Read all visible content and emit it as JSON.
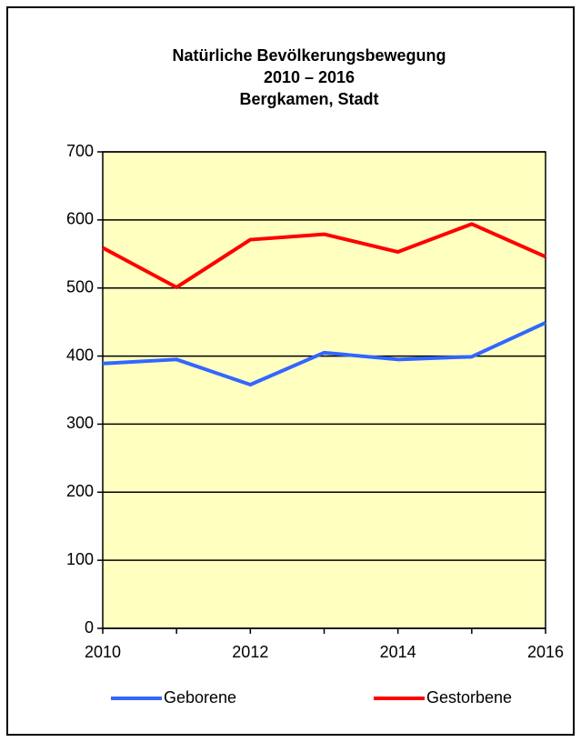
{
  "chart_data": {
    "type": "line",
    "title": "Natürliche Bevölkerungsbewegung",
    "subtitle": [
      "2010 – 2016",
      "Bergkamen, Stadt"
    ],
    "x": [
      2010,
      2011,
      2012,
      2013,
      2014,
      2015,
      2016
    ],
    "series": [
      {
        "name": "Geborene",
        "color": "#3366ff",
        "values": [
          389,
          395,
          358,
          405,
          395,
          399,
          449
        ]
      },
      {
        "name": "Gestorbene",
        "color": "#ff0000",
        "values": [
          559,
          501,
          571,
          579,
          553,
          594,
          546
        ]
      }
    ],
    "xlim": [
      2010,
      2016
    ],
    "xticks": [
      2010,
      2012,
      2014,
      2016
    ],
    "ylim": [
      0,
      700
    ],
    "yticks": [
      0,
      100,
      200,
      300,
      400,
      500,
      600,
      700
    ],
    "grid": true,
    "legend": "bottom",
    "plot_background": "#ffffc0"
  }
}
